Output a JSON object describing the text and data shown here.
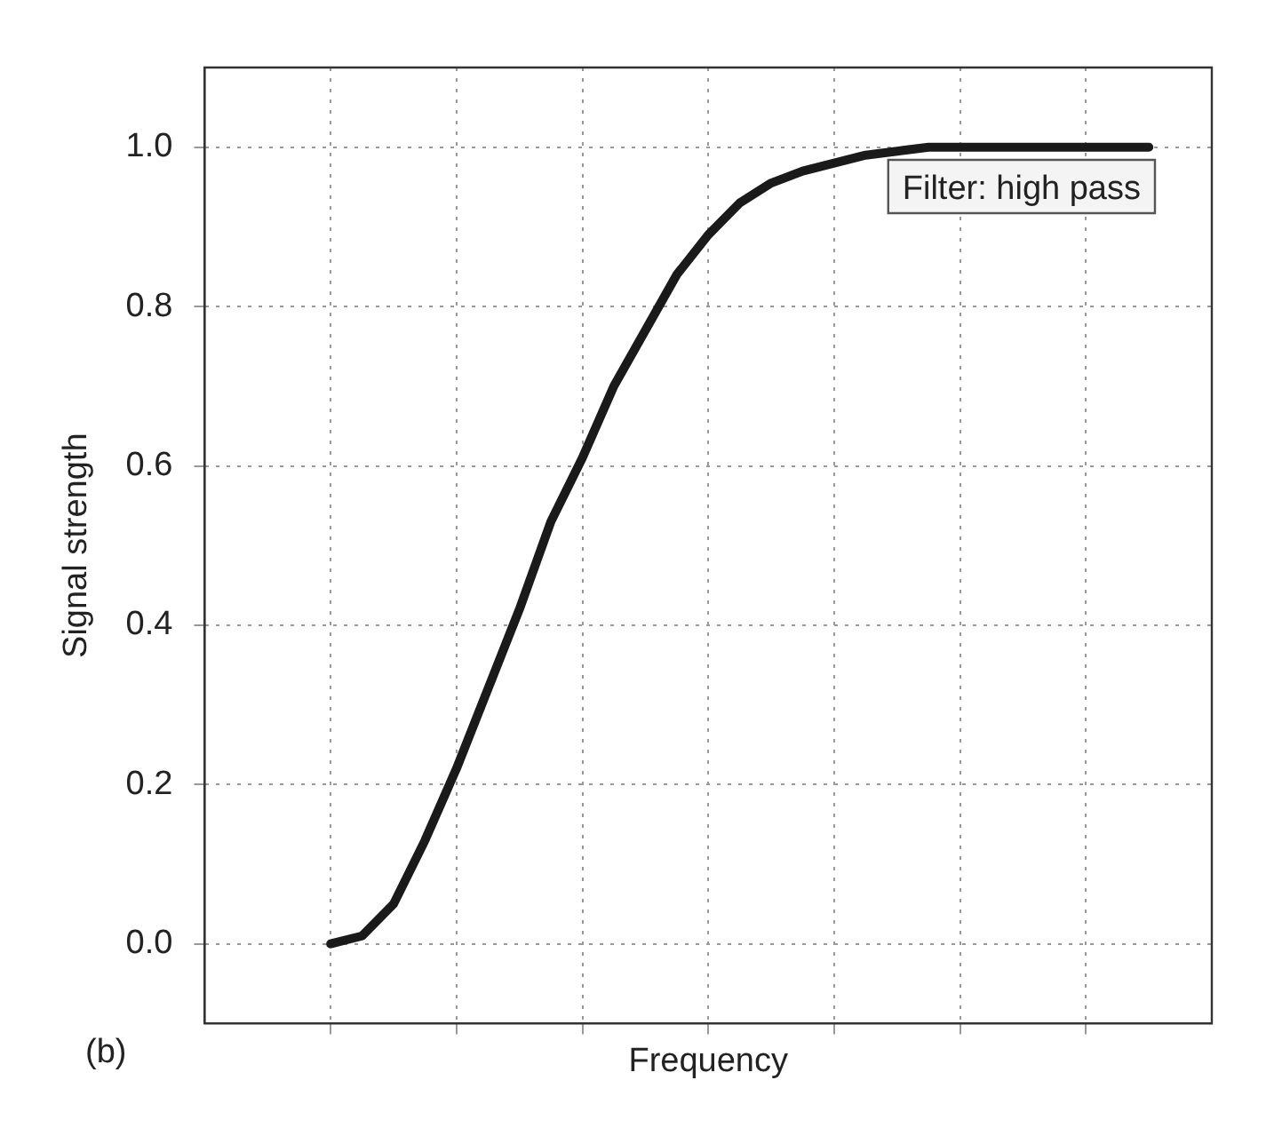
{
  "chart_data": {
    "type": "line",
    "xlabel": "Frequency",
    "ylabel": "Signal strength",
    "annotations": [
      "Filter: high pass",
      "(b)"
    ],
    "categories": [
      null,
      null,
      null,
      null,
      null,
      null,
      null,
      null,
      null,
      null,
      null,
      null,
      null,
      null,
      null,
      null,
      null,
      null,
      null,
      null,
      null,
      null,
      null,
      null,
      null,
      null,
      null,
      null,
      null,
      null,
      null,
      null,
      null
    ],
    "series": [
      {
        "color": "#1a1a1a",
        "values": [
          null,
          null,
          null,
          null,
          0.0,
          0.01,
          0.05,
          0.13,
          0.22,
          0.32,
          0.42,
          0.53,
          0.61,
          0.7,
          0.77,
          0.84,
          0.89,
          0.93,
          0.955,
          0.97,
          0.98,
          0.99,
          0.995,
          1.0,
          1.0,
          1.0,
          1.0,
          1.0,
          1.0,
          1.0,
          1.0,
          null,
          null
        ]
      }
    ],
    "ylim": [
      -0.1,
      1.1
    ],
    "yticks": [
      {
        "value": 0,
        "label": "0.0"
      },
      0.2,
      0.4,
      0.6,
      0.8,
      {
        "value": 1,
        "label": "1.0"
      }
    ],
    "tick_labels": "y",
    "grid": true,
    "legend": false,
    "marker": "none",
    "line_style": "solid"
  }
}
